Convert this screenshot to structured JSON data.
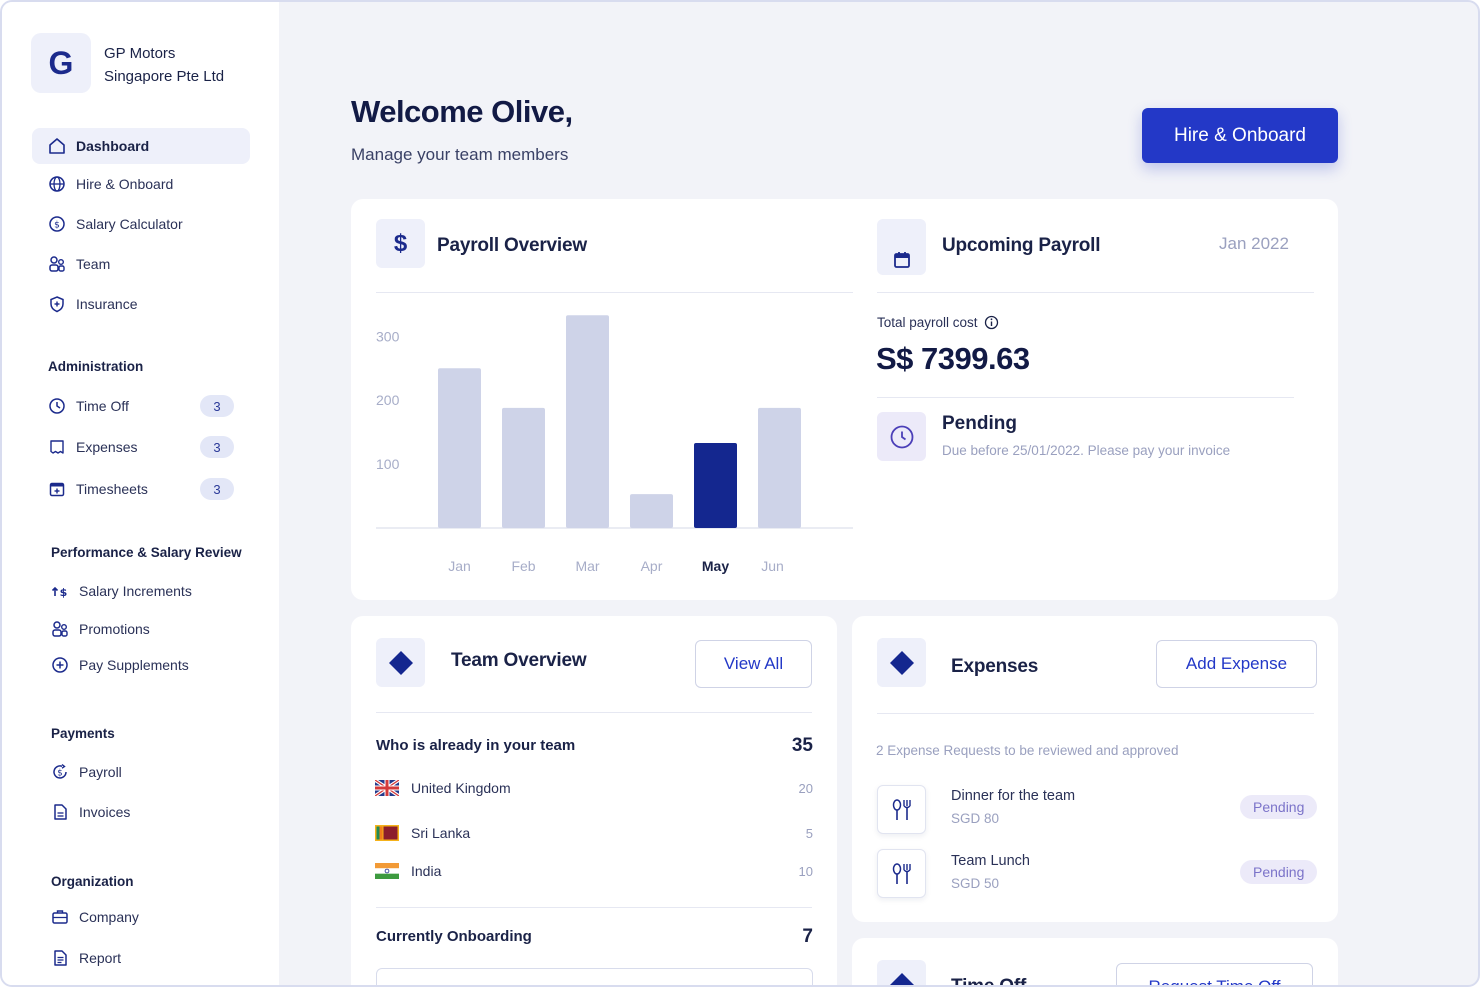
{
  "company": {
    "logo_letter": "G",
    "name_line1": "GP Motors",
    "name_line2": "Singapore Pte Ltd"
  },
  "nav": {
    "main": [
      {
        "label": "Dashboard",
        "icon": "home-icon"
      },
      {
        "label": "Hire & Onboard",
        "icon": "globe-icon"
      },
      {
        "label": "Salary Calculator",
        "icon": "dollar-circle-icon"
      },
      {
        "label": "Team",
        "icon": "team-icon"
      },
      {
        "label": "Insurance",
        "icon": "shield-icon"
      }
    ],
    "administration": {
      "title": "Administration",
      "items": [
        {
          "label": "Time Off",
          "count": "3",
          "icon": "clock-icon"
        },
        {
          "label": "Expenses",
          "count": "3",
          "icon": "receipt-icon"
        },
        {
          "label": "Timesheets",
          "count": "3",
          "icon": "calendar-plus-icon"
        }
      ]
    },
    "performance": {
      "title": "Performance & Salary Review",
      "items": [
        {
          "label": "Salary Increments",
          "icon": "salary-up-icon"
        },
        {
          "label": "Promotions",
          "icon": "team-icon"
        },
        {
          "label": "Pay Supplements",
          "icon": "plus-circle-icon"
        }
      ]
    },
    "payments": {
      "title": "Payments",
      "items": [
        {
          "label": "Payroll",
          "icon": "payroll-icon"
        },
        {
          "label": "Invoices",
          "icon": "document-icon"
        }
      ]
    },
    "organization": {
      "title": "Organization",
      "items": [
        {
          "label": "Company",
          "icon": "briefcase-icon"
        },
        {
          "label": "Report",
          "icon": "report-icon"
        }
      ]
    }
  },
  "header": {
    "welcome": "Welcome Olive,",
    "subtitle": "Manage your team members",
    "hire_button": "Hire & Onboard"
  },
  "payroll_overview": {
    "title": "Payroll Overview",
    "icon_glyph": "$"
  },
  "chart_data": {
    "type": "bar",
    "categories": [
      "Jan",
      "Feb",
      "Mar",
      "Apr",
      "May",
      "Jun"
    ],
    "values": [
      250,
      188,
      333,
      53,
      133,
      188
    ],
    "highlight_index": 4,
    "yticks": [
      100,
      200,
      300
    ],
    "ylim": [
      0,
      360
    ],
    "title": "Payroll Overview",
    "xlabel": "",
    "ylabel": "",
    "colors": {
      "bar": "#ced3e8",
      "highlight": "#14278f"
    }
  },
  "upcoming_payroll": {
    "title": "Upcoming Payroll",
    "date": "Jan 2022",
    "total_label": "Total payroll cost",
    "total_value": "S$ 7399.63",
    "status_title": "Pending",
    "status_note": "Due before 25/01/2022. Please pay your invoice"
  },
  "team_overview": {
    "title": "Team Overview",
    "view_all": "View All",
    "in_team_label": "Who is already in your team",
    "in_team_count": "35",
    "countries": [
      {
        "name": "United Kingdom",
        "count": "20",
        "flag": "uk-flag"
      },
      {
        "name": "Sri Lanka",
        "count": "5",
        "flag": "sri-lanka-flag"
      },
      {
        "name": "India",
        "count": "10",
        "flag": "india-flag"
      }
    ],
    "onboarding_label": "Currently Onboarding",
    "onboarding_count": "7"
  },
  "expenses": {
    "title": "Expenses",
    "add_button": "Add Expense",
    "summary": "2 Expense Requests to be reviewed and approved",
    "items": [
      {
        "name": "Dinner for the team",
        "amount": "SGD 80",
        "status": "Pending"
      },
      {
        "name": "Team Lunch",
        "amount": "SGD 50",
        "status": "Pending"
      }
    ]
  },
  "time_off": {
    "title": "Time Off",
    "request_button": "Request Time Off"
  },
  "colors": {
    "accent": "#2338c7",
    "navy": "#14278f",
    "bar_muted": "#ced3e8",
    "pending_bg": "#eceaf9",
    "pending_text": "#7b73c9"
  }
}
